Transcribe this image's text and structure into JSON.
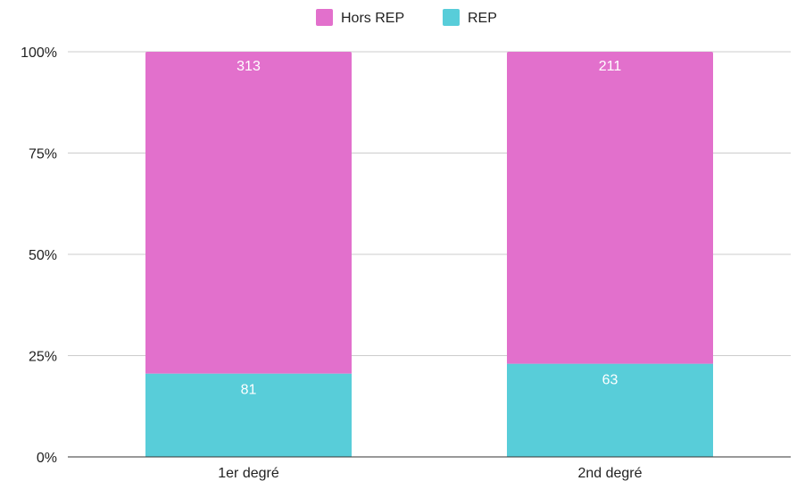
{
  "chart_data": {
    "type": "bar",
    "stacked": true,
    "normalized": true,
    "categories": [
      "1er degré",
      "2nd degré"
    ],
    "series": [
      {
        "name": "REP",
        "values": [
          81,
          63
        ],
        "color": "#58cdd9"
      },
      {
        "name": "Hors REP",
        "values": [
          313,
          211
        ],
        "color": "#e270cc"
      }
    ],
    "ylim": [
      0,
      100
    ],
    "yticks": [
      "0%",
      "25%",
      "50%",
      "75%",
      "100%"
    ],
    "legend": {
      "position": "top",
      "order": [
        "Hors REP",
        "REP"
      ]
    },
    "grid": true
  }
}
